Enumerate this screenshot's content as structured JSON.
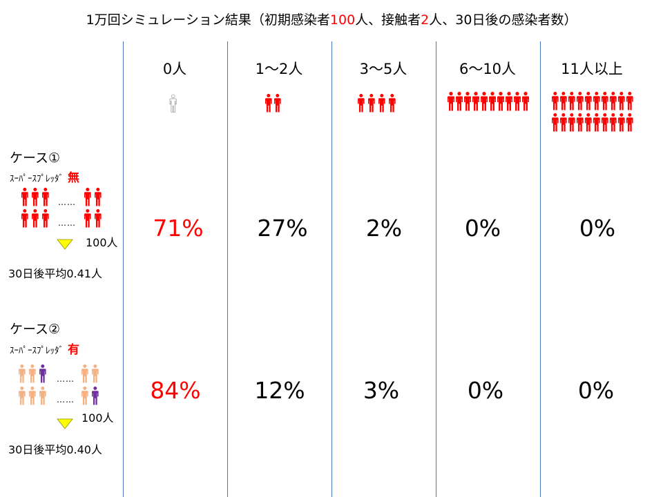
{
  "title": {
    "part1": "1万回シミュレーション結果（初期感染者",
    "initial_infected": "100",
    "part2": "人、接触者",
    "contacts": "2",
    "part3": "人、30日後の感染者数）"
  },
  "columns": [
    "0人",
    "1〜2人",
    "3〜5人",
    "6〜10人",
    "11人以上"
  ],
  "case1": {
    "title": "ケース①",
    "spreader_label": "ｽｰﾊﾟｰｽﾌﾟﾚｯﾀﾞ",
    "spreader_flag": "無",
    "dots": "……",
    "count_label": "100人",
    "average": "30日後平均0.41人",
    "percentages": [
      "71%",
      "27%",
      "2%",
      "0%",
      "0%"
    ]
  },
  "case2": {
    "title": "ケース②",
    "spreader_label": "ｽｰﾊﾟｰｽﾌﾟﾚｯﾀﾞ",
    "spreader_flag": "有",
    "dots": "……",
    "count_label": "100人",
    "average": "30日後平均0.40人",
    "percentages": [
      "84%",
      "12%",
      "3%",
      "0%",
      "0%"
    ]
  },
  "colors": {
    "infected": "#ff0000",
    "normal_case2": "#f4b183",
    "superspreader": "#7030a0",
    "divider": "#4a72c4",
    "triangle": "#ffff00",
    "highlight": "#ff0000"
  },
  "icons": {
    "person": "person-icon",
    "outline_person": "outline-person-icon",
    "triangle": "down-triangle-icon"
  }
}
